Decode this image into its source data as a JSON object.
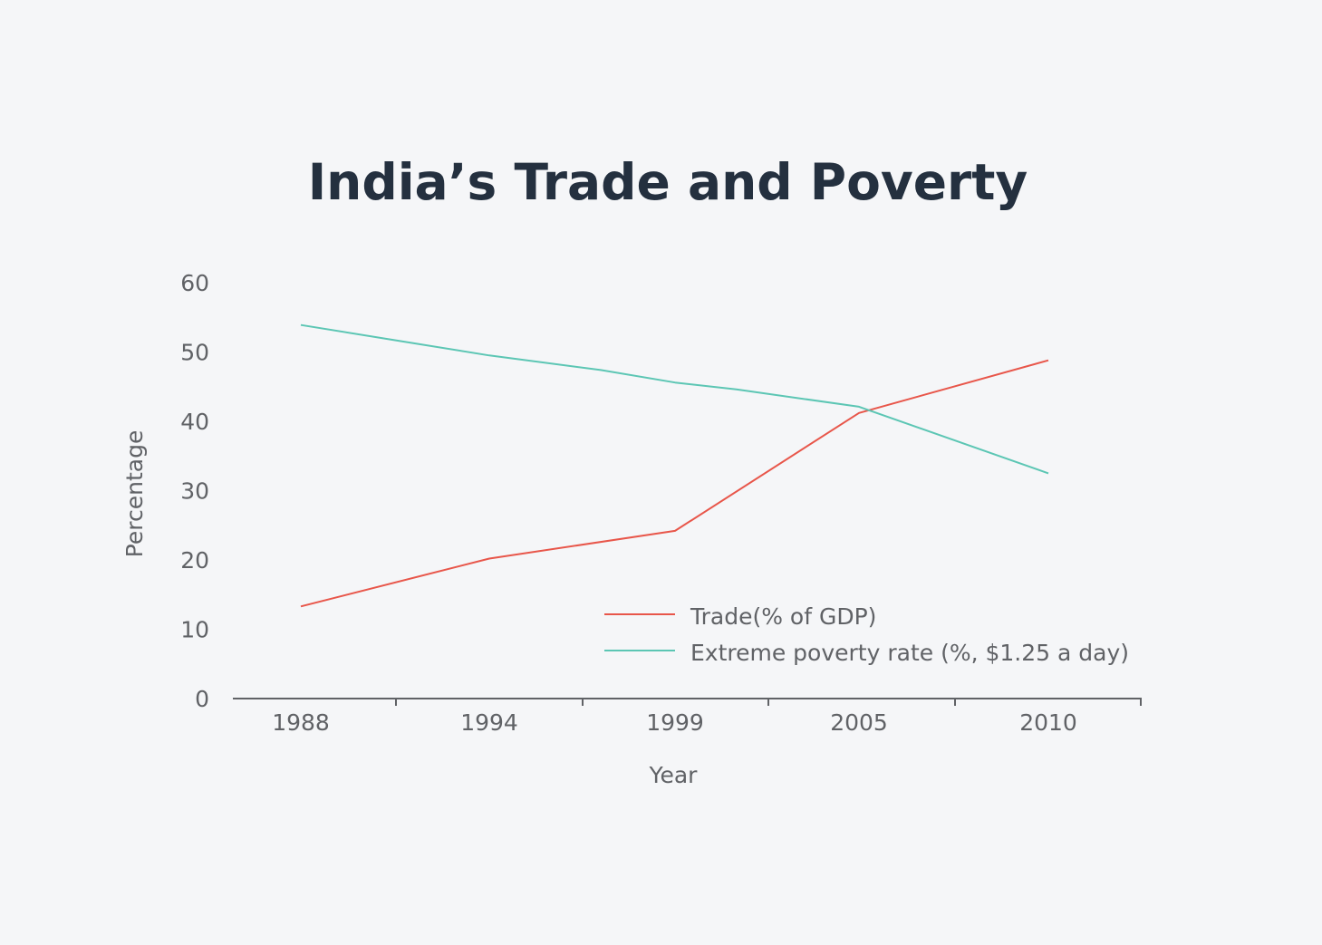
{
  "chart_data": {
    "type": "line",
    "title": "India’s Trade and Poverty",
    "xlabel": "Year",
    "ylabel": "Percentage",
    "categories": [
      "1988",
      "1994",
      "1999",
      "2005",
      "2010"
    ],
    "yticks": [
      0,
      10,
      20,
      30,
      40,
      50,
      60
    ],
    "ylim": [
      0,
      60
    ],
    "grid": false,
    "legend_position": "bottom-right",
    "series": [
      {
        "name": "Trade(% of GDP)",
        "color": "#e8564a",
        "x": [
          1988,
          1994,
          1999,
          2005,
          2010
        ],
        "values": [
          13.3,
          20.2,
          24.2,
          41.2,
          48.8
        ]
      },
      {
        "name": "Extreme poverty rate (%, $1.25 a day)",
        "color": "#5cc6b4",
        "x": [
          1988,
          1991,
          1994,
          1997,
          1999,
          2001,
          2005,
          2010
        ],
        "values": [
          53.9,
          51.7,
          49.5,
          47.4,
          45.6,
          44.6,
          42.1,
          32.5
        ]
      }
    ]
  }
}
